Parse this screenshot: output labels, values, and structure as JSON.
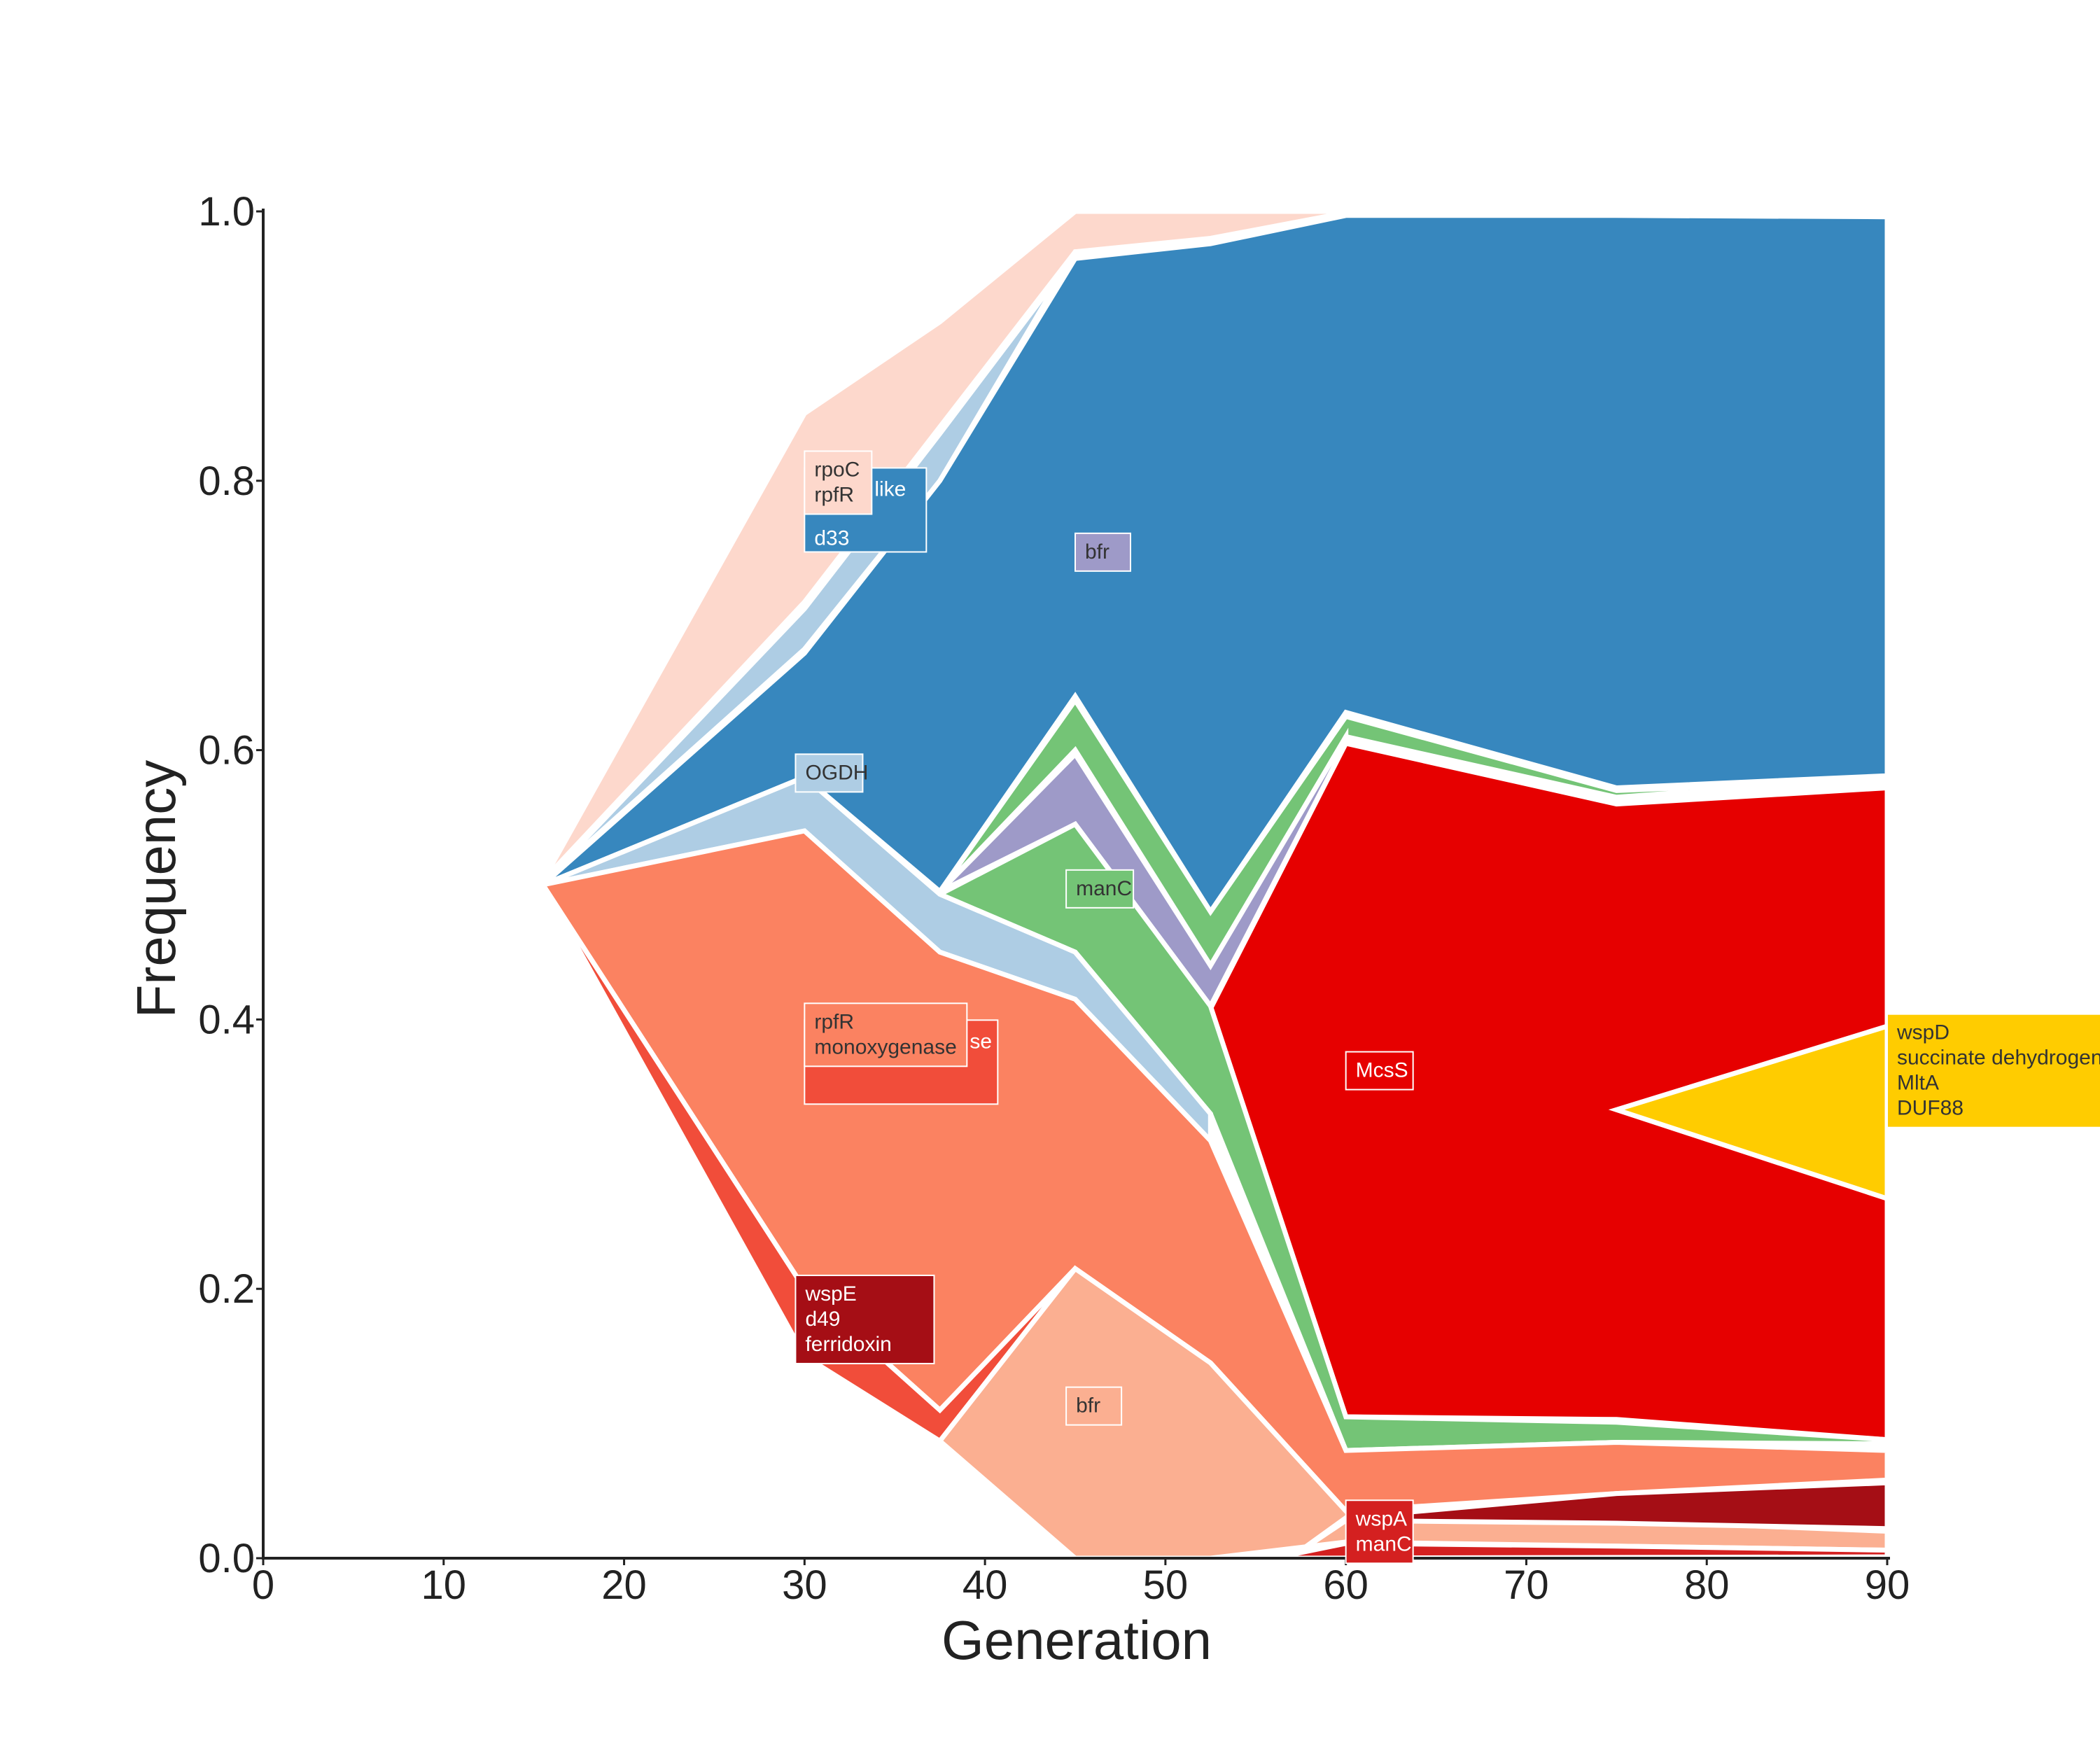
{
  "chart_data": {
    "type": "area",
    "subtype": "stacked-lineage-frequency (Muller-style)",
    "xlabel": "Generation",
    "ylabel": "Frequency",
    "xlim": [
      0,
      90
    ],
    "ylim": [
      0,
      1
    ],
    "xticks": [
      "0",
      "10",
      "20",
      "30",
      "40",
      "50",
      "60",
      "70",
      "80",
      "90"
    ],
    "yticks": [
      "0.0",
      "0.2",
      "0.4",
      "0.6",
      "0.8",
      "1.0"
    ],
    "grid": false,
    "legend": "none",
    "boundary_color": "#ffffff",
    "layers": [
      {
        "id": "L1",
        "color": "#fdd8cc",
        "points": [
          [
            15.5,
            0.503
          ],
          [
            30,
            0.85
          ],
          [
            37.5,
            0.918
          ],
          [
            45,
            1.0
          ],
          [
            52.5,
            1.0
          ],
          [
            60,
            1.0
          ],
          [
            75,
            1.0
          ],
          [
            90,
            1.0
          ],
          [
            90,
            0.9995
          ],
          [
            75,
            0.999
          ],
          [
            60,
            0.999
          ],
          [
            52.5,
            0.98
          ],
          [
            45,
            0.97
          ],
          [
            37.5,
            0.84
          ],
          [
            30,
            0.71
          ],
          [
            15.5,
            0.503
          ]
        ]
      },
      {
        "id": "L2",
        "color": "#aecde4",
        "points": [
          [
            15.5,
            0.501
          ],
          [
            30,
            0.705
          ],
          [
            37.5,
            0.835
          ],
          [
            45,
            0.968
          ],
          [
            52.5,
            0.978
          ],
          [
            60,
            0.998
          ],
          [
            75,
            0.998
          ],
          [
            90,
            0.998
          ],
          [
            90,
            0.998
          ],
          [
            75,
            0.998
          ],
          [
            60,
            0.998
          ],
          [
            52.5,
            0.978
          ],
          [
            45,
            0.97
          ],
          [
            37.5,
            0.8
          ],
          [
            30,
            0.675
          ],
          [
            15.5,
            0.501
          ]
        ]
      },
      {
        "id": "L3",
        "color": "#3787be",
        "points": [
          [
            15.5,
            0.5
          ],
          [
            30,
            0.672
          ],
          [
            37.5,
            0.8
          ],
          [
            45,
            0.965
          ],
          [
            52.5,
            0.976
          ],
          [
            60,
            0.997
          ],
          [
            75,
            0.997
          ],
          [
            90,
            0.996
          ],
          [
            90,
            0.581
          ],
          [
            75,
            0.572
          ],
          [
            60,
            0.628
          ],
          [
            52.5,
            0.48
          ],
          [
            45,
            0.64
          ],
          [
            37.5,
            0.495
          ],
          [
            30,
            0.58
          ],
          [
            15.5,
            0.5
          ]
        ]
      },
      {
        "id": "L4",
        "color": "#74c476",
        "points": [
          [
            37.5,
            0.495
          ],
          [
            45,
            0.637
          ],
          [
            52.5,
            0.48
          ],
          [
            60,
            0.625
          ],
          [
            75,
            0.57
          ],
          [
            90,
            0.578
          ],
          [
            90,
            0.58
          ],
          [
            75,
            0.565
          ],
          [
            60,
            0.61
          ],
          [
            52.5,
            0.44
          ],
          [
            45,
            0.6
          ],
          [
            37.5,
            0.495
          ]
        ]
      },
      {
        "id": "L5",
        "color": "#9e9ac8",
        "points": [
          [
            37.5,
            0.495
          ],
          [
            45,
            0.597
          ],
          [
            52.5,
            0.44
          ],
          [
            60,
            0.61
          ],
          [
            60,
            0.605
          ],
          [
            52.5,
            0.41
          ],
          [
            45,
            0.545
          ],
          [
            37.5,
            0.495
          ]
        ]
      },
      {
        "id": "L6",
        "color": "#e60000",
        "points": [
          [
            52.5,
            0.408
          ],
          [
            60,
            0.605
          ],
          [
            75,
            0.56
          ],
          [
            90,
            0.572
          ],
          [
            90,
            0.088
          ],
          [
            75,
            0.103
          ],
          [
            60,
            0.105
          ],
          [
            52.5,
            0.408
          ]
        ]
      },
      {
        "id": "L7",
        "color": "#ffcc00",
        "points": [
          [
            75,
            0.333
          ],
          [
            90,
            0.395
          ],
          [
            90,
            0.267
          ],
          [
            75,
            0.333
          ]
        ]
      },
      {
        "id": "L8",
        "color": "#74c476",
        "points": [
          [
            37.5,
            0.493
          ],
          [
            45,
            0.545
          ],
          [
            52.5,
            0.41
          ],
          [
            60,
            0.105
          ],
          [
            75,
            0.101
          ],
          [
            90,
            0.088
          ],
          [
            90,
            0.085
          ],
          [
            75,
            0.086
          ],
          [
            60,
            0.08
          ],
          [
            52.5,
            0.33
          ],
          [
            45,
            0.45
          ],
          [
            37.5,
            0.493
          ]
        ]
      },
      {
        "id": "L9",
        "color": "#aecde4",
        "points": [
          [
            15.5,
            0.5
          ],
          [
            30,
            0.58
          ],
          [
            37.5,
            0.493
          ],
          [
            45,
            0.45
          ],
          [
            52.5,
            0.33
          ],
          [
            52.5,
            0.31
          ],
          [
            45,
            0.415
          ],
          [
            37.5,
            0.45
          ],
          [
            30,
            0.54
          ],
          [
            15.5,
            0.5
          ]
        ]
      },
      {
        "id": "L10",
        "color": "#fb8261",
        "points": [
          [
            15.5,
            0.5
          ],
          [
            30,
            0.54
          ],
          [
            37.5,
            0.45
          ],
          [
            45,
            0.415
          ],
          [
            52.5,
            0.31
          ],
          [
            60,
            0.08
          ],
          [
            75,
            0.086
          ],
          [
            90,
            0.08
          ],
          [
            90,
            0.058
          ],
          [
            75,
            0.048
          ],
          [
            60,
            0.035
          ],
          [
            52.5,
            0.145
          ],
          [
            45,
            0.215
          ],
          [
            37.5,
            0.11
          ],
          [
            30,
            0.2
          ],
          [
            15.5,
            0.5
          ]
        ]
      },
      {
        "id": "L11",
        "color": "#f14d3a",
        "points": [
          [
            15.5,
            0.5
          ],
          [
            30,
            0.2
          ],
          [
            37.5,
            0.11
          ],
          [
            45,
            0.215
          ],
          [
            37.5,
            0.087
          ],
          [
            30,
            0.15
          ],
          [
            15.5,
            0.5
          ]
        ]
      },
      {
        "id": "L12",
        "color": "#fbaf91",
        "points": [
          [
            37.5,
            0.087
          ],
          [
            45,
            0.215
          ],
          [
            52.5,
            0.145
          ],
          [
            60,
            0.035
          ],
          [
            75,
            0.028
          ],
          [
            90,
            0.02
          ],
          [
            90,
            0.006
          ],
          [
            75,
            0.009
          ],
          [
            60,
            0.012
          ],
          [
            52.5,
            0.0
          ],
          [
            45,
            0.0
          ],
          [
            37.5,
            0.087
          ]
        ]
      },
      {
        "id": "L13",
        "color": "#a50e15",
        "points": [
          [
            57,
            0.001
          ],
          [
            60,
            0.03
          ],
          [
            75,
            0.048
          ],
          [
            90,
            0.056
          ],
          [
            90,
            0.022
          ],
          [
            75,
            0.026
          ],
          [
            60,
            0.028
          ],
          [
            57,
            0.001
          ]
        ]
      },
      {
        "id": "L14",
        "color": "#d42020",
        "points": [
          [
            56,
            0.0
          ],
          [
            60,
            0.011
          ],
          [
            75,
            0.009
          ],
          [
            90,
            0.006
          ],
          [
            90,
            0.001
          ],
          [
            56,
            0.0
          ]
        ]
      }
    ],
    "annotations": [
      {
        "id": "a1",
        "lines": [
          "rpoC",
          "rpfR"
        ],
        "behind_lines": [
          "like",
          "d33"
        ],
        "behind_color": "#3787be",
        "color": "#fdd8cc",
        "text_color": "#333333",
        "x": 30,
        "y": 0.822
      },
      {
        "id": "a2",
        "lines": [
          "bfr"
        ],
        "color": "#9e9ac8",
        "text_color": "#333333",
        "x": 45,
        "y": 0.761
      },
      {
        "id": "a3",
        "lines": [
          "OGDH"
        ],
        "color": "#aecde4",
        "text_color": "#333333",
        "x": 29.5,
        "y": 0.597
      },
      {
        "id": "a4",
        "lines": [
          "manC"
        ],
        "color": "#74c476",
        "text_color": "#333333",
        "x": 44.5,
        "y": 0.511
      },
      {
        "id": "a5",
        "lines": [
          "rpfR",
          "monoxygenase"
        ],
        "behind_lines": [
          "se"
        ],
        "behind_color": "#f14d3a",
        "color": "#fb8261",
        "text_color": "#333333",
        "x": 30,
        "y": 0.412
      },
      {
        "id": "a6",
        "lines": [
          "McsS"
        ],
        "color": "#e60000",
        "text_color": "#ffffff",
        "x": 60,
        "y": 0.376
      },
      {
        "id": "a7",
        "lines": [
          "wspD",
          "succinate dehydrogenase",
          "MltA",
          "DUF88"
        ],
        "color": "#ffcc00",
        "text_color": "#333333",
        "x": 90,
        "y": 0.404
      },
      {
        "id": "a8",
        "lines": [
          "wspE",
          "d49",
          "ferridoxin"
        ],
        "color": "#a50e15",
        "text_color": "#ffffff",
        "x": 29.5,
        "y": 0.21
      },
      {
        "id": "a9",
        "lines": [
          "bfr"
        ],
        "color": "#fbaf91",
        "text_color": "#333333",
        "x": 44.5,
        "y": 0.127
      },
      {
        "id": "a10",
        "lines": [
          "wspA",
          "manC"
        ],
        "color": "#d42020",
        "text_color": "#ffffff",
        "x": 60,
        "y": 0.043
      }
    ]
  }
}
